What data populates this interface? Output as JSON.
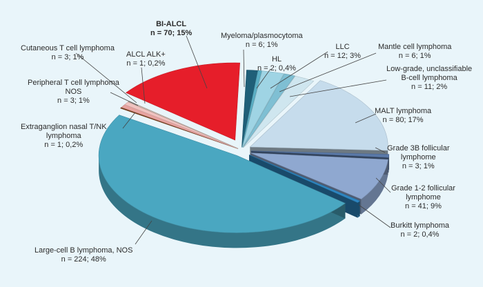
{
  "chart_data": {
    "type": "pie",
    "style": "3d-exploded",
    "total_label_basis": "percent of cases",
    "slices": [
      {
        "name": "BI-ALCL",
        "line1": "BI-ALCL",
        "line2": "n = 70; 15%",
        "n": 70,
        "pct": 15,
        "color": "#e61e2a",
        "exploded": true,
        "bold": true
      },
      {
        "name": "Myeloma/plasmocytoma",
        "line1": "Myeloma/plasmocytoma",
        "line2": "n = 6; 1%",
        "n": 6,
        "pct": 1,
        "color": "#1f5f78"
      },
      {
        "name": "HL",
        "line1": "HL",
        "line2": "n = 2; 0,4%",
        "n": 2,
        "pct": 0.4,
        "color": "#5aaec4"
      },
      {
        "name": "LLC",
        "line1": "LLC",
        "line2": "n = 12; 3%",
        "n": 12,
        "pct": 3,
        "color": "#9fd4e4"
      },
      {
        "name": "Mantle cell lymphoma",
        "line1": "Mantle cell lymphoma",
        "line2": "n = 6; 1%",
        "n": 6,
        "pct": 1,
        "color": "#7fbfd3"
      },
      {
        "name": "Low-grade, unclassifiable B-cell lymphoma",
        "line1": "Low-grade, unclassifiable",
        "line2": "B-cell lymphoma",
        "line3": "n = 11; 2%",
        "n": 11,
        "pct": 2,
        "color": "#cfe6ef"
      },
      {
        "name": "MALT lymphoma",
        "line1": "MALT lymphoma",
        "line2": "n = 80; 17%",
        "n": 80,
        "pct": 17,
        "color": "#c6dcec"
      },
      {
        "name": "Grade 3B follicular lymphome",
        "line1": "Grade 3B follicular",
        "line2": "lymphome",
        "line3": "n = 3; 1%",
        "n": 3,
        "pct": 1,
        "color": "#5a79a8"
      },
      {
        "name": "Grade 1-2 follicular lymphome",
        "line1": "Grade 1-2 follicular",
        "line2": "lymphome",
        "line3": "n = 41; 9%",
        "n": 41,
        "pct": 9,
        "color": "#8fa8d0"
      },
      {
        "name": "Burkitt lymphoma",
        "line1": "Burkitt lymphoma",
        "line2": "n = 2; 0,4%",
        "n": 2,
        "pct": 0.4,
        "color": "#2e86c1"
      },
      {
        "name": "Large-cell B lymphoma, NOS",
        "line1": "Large-cell B lymphoma, NOS",
        "line2": "n = 224; 48%",
        "n": 224,
        "pct": 48,
        "color": "#4aa7c1"
      },
      {
        "name": "Extraganglion nasal T/NK lymphoma",
        "line1": "Extraganglion nasal T/NK",
        "line2": "lymphoma",
        "line3": "n = 1; 0,2%",
        "n": 1,
        "pct": 0.2,
        "color": "#7a3f1b"
      },
      {
        "name": "Peripheral T cell lymphoma NOS",
        "line1": "Peripheral T cell lymphoma",
        "line2": "NOS",
        "line3": "n = 3; 1%",
        "n": 3,
        "pct": 1,
        "color": "#e7a3a0"
      },
      {
        "name": "Cutaneous T cell lymphoma",
        "line1": "Cutaneous T cell lymphoma",
        "line2": "n = 3; 1%",
        "n": 3,
        "pct": 1,
        "color": "#f1c3c0"
      },
      {
        "name": "ALCL ALK+",
        "line1": "ALCL ALK+",
        "line2": "n = 1; 0,2%",
        "n": 1,
        "pct": 0.2,
        "color": "#c9b6ad"
      }
    ],
    "dark_slice_color": "#0f1e3c",
    "legend": "none (callout labels)"
  }
}
